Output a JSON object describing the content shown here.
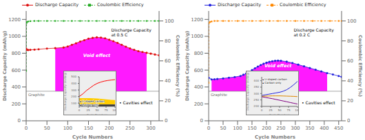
{
  "chart_data": [
    {
      "type": "line",
      "x_label": "Cycle Numbers",
      "y_label": "Discharge Capacity (mAh/g)",
      "y2_label": "Coulombic Efficiency (%)",
      "xlim": [
        0,
        320
      ],
      "xticks": [
        0,
        50,
        100,
        150,
        200,
        250,
        300
      ],
      "ylim": [
        0,
        1300
      ],
      "yticks": [
        0,
        200,
        400,
        600,
        800,
        1000,
        1200
      ],
      "y2lim": [
        0,
        110
      ],
      "y2ticks": [
        0,
        20,
        40,
        60,
        80,
        100
      ],
      "grid": false,
      "legend": "top",
      "series": [
        {
          "name": "Discharge Capacity",
          "type": "line",
          "color": "#dd1111",
          "marker": "circle",
          "line_style": "solid",
          "x": [
            0,
            2,
            5,
            10,
            20,
            30,
            50,
            70,
            90,
            100,
            110,
            120,
            130,
            140,
            150,
            160,
            170,
            180,
            190,
            200,
            210,
            220,
            230,
            240,
            250,
            260,
            270,
            280,
            290,
            300,
            310,
            320
          ],
          "values": [
            855,
            840,
            838,
            840,
            843,
            847,
            855,
            860,
            868,
            880,
            900,
            918,
            938,
            955,
            972,
            982,
            988,
            985,
            977,
            960,
            942,
            922,
            900,
            878,
            857,
            840,
            825,
            815,
            805,
            795,
            785,
            775
          ]
        },
        {
          "name": "Coulombic Efficiency",
          "type": "line",
          "color": "#22aa22",
          "marker": "square",
          "line_style": "dashed",
          "axis": "y2",
          "x": [
            0,
            1,
            2,
            5,
            10,
            20,
            30,
            50,
            70,
            90,
            110,
            130,
            150,
            170,
            190,
            210,
            230,
            250,
            270,
            290,
            310,
            320
          ],
          "values": [
            50,
            98,
            99,
            99.5,
            99.8,
            100,
            100,
            100,
            100,
            100,
            100,
            100,
            100,
            100,
            100,
            100,
            100,
            100,
            100,
            100,
            100,
            100
          ]
        }
      ],
      "reference_line": {
        "y": 350,
        "label": "Graphite",
        "color": "gray"
      },
      "fill": {
        "x_start": 70,
        "x_end": 290,
        "color": "#ff00ff",
        "label": "Void effect"
      },
      "annotations": [
        "• Cavities effect",
        "Discharge Capacity\nat 0.5 C"
      ],
      "inset": {
        "type": "line",
        "x_label": "Cycle Numbers",
        "y_label": "Discharge Capacity (mAh/g)",
        "x": [
          0,
          10,
          20,
          30,
          40,
          50,
          60,
          70,
          80,
          90,
          100
        ],
        "xlim": [
          0,
          100
        ],
        "xticks": [
          0,
          25,
          50,
          75,
          100
        ],
        "ylim": [
          50,
          500
        ],
        "yticks": [
          100,
          200,
          300,
          400,
          500
        ],
        "series": [
          {
            "type": "area_range",
            "color": "#ffcc00",
            "low": [
              80,
              80,
              80,
              80,
              80,
              80,
              80,
              80,
              80,
              80,
              80
            ],
            "high": [
              175,
              175,
              175,
              175,
              173,
              170,
              165,
              160,
              155,
              150,
              148
            ]
          },
          {
            "type": "area_range",
            "color": "#333333",
            "low": [
              50,
              50,
              50,
              50,
              50,
              50,
              50,
              50,
              50,
              50,
              50
            ],
            "high": [
              80,
              80,
              80,
              80,
              80,
              80,
              80,
              80,
              80,
              80,
              80
            ]
          },
          {
            "type": "line",
            "color": "red",
            "values": [
              200,
              240,
              290,
              330,
              370,
              400,
              420,
              435,
              445,
              452,
              458
            ]
          }
        ],
        "annotations": [
          "▴ Li-doped carbon",
          "▴ Carbon only"
        ]
      }
    },
    {
      "type": "line",
      "x_label": "Cycle Numbers",
      "y_label": "Discharge Capacity (mAh/g)",
      "y2_label": "Coulombic Efficiency (%)",
      "xlim": [
        0,
        460
      ],
      "xticks": [
        0,
        50,
        100,
        150,
        200,
        250,
        300,
        350,
        400,
        450
      ],
      "ylim": [
        0,
        1300
      ],
      "yticks": [
        0,
        200,
        400,
        600,
        800,
        1000,
        1200
      ],
      "y2lim": [
        0,
        110
      ],
      "y2ticks": [
        0,
        20,
        40,
        60,
        80,
        100
      ],
      "grid": false,
      "legend": "top",
      "series": [
        {
          "name": "Discharge Capacity",
          "type": "line",
          "color": "#2222dd",
          "marker": "circle",
          "line_style": "solid",
          "x": [
            0,
            10,
            20,
            30,
            50,
            70,
            90,
            110,
            120,
            130,
            140,
            150,
            160,
            170,
            180,
            190,
            200,
            210,
            220,
            230,
            240,
            250,
            270,
            290,
            310,
            330,
            350,
            370,
            390,
            410,
            430,
            450,
            460
          ],
          "values": [
            510,
            490,
            492,
            495,
            502,
            510,
            518,
            530,
            545,
            560,
            580,
            600,
            622,
            642,
            660,
            675,
            688,
            698,
            705,
            710,
            712,
            710,
            700,
            685,
            665,
            645,
            625,
            605,
            585,
            565,
            548,
            530,
            520
          ]
        },
        {
          "name": "Coulombic Efficiency",
          "type": "line",
          "color": "#ff8800",
          "marker": "square",
          "line_style": "dashed",
          "axis": "y2",
          "x": [
            0,
            1,
            5,
            10,
            20,
            30,
            50,
            70,
            100,
            120,
            150,
            180,
            210,
            240,
            270,
            300,
            330,
            360,
            390,
            420,
            450,
            460
          ],
          "values": [
            38,
            98,
            99,
            99.5,
            100,
            100,
            100,
            100,
            100,
            100,
            100,
            100,
            100,
            100,
            100,
            100,
            100,
            100,
            100,
            100,
            100,
            100
          ]
        }
      ],
      "reference_line": {
        "y": 350,
        "label": "Graphite",
        "color": "gray"
      },
      "fill": {
        "x_start": 10,
        "x_end": 420,
        "color": "#ff00ff",
        "label": "Void effect"
      },
      "annotations": [
        "• Cavities effect",
        "Discharge Capacity\nat 0.2 C"
      ],
      "inset": {
        "type": "line",
        "x_label": "Cycle Numbers",
        "y_label": "Discharge Capacity (mAh/g)",
        "x": [
          0,
          10,
          20,
          30,
          40,
          50,
          60,
          70,
          80,
          90,
          100
        ],
        "xlim": [
          0,
          100
        ],
        "xticks": [
          0,
          25,
          50,
          75,
          100
        ],
        "ylim": [
          200,
          430
        ],
        "yticks": [
          200,
          250,
          300,
          350,
          400
        ],
        "series": [
          {
            "type": "line",
            "color": "#2222dd",
            "values": [
              285,
              290,
              295,
              300,
              305,
              310,
              318,
              330,
              348,
              370,
              395
            ]
          },
          {
            "type": "line",
            "color": "#dd8800",
            "values": [
              278,
              280,
              281,
              282,
              282,
              282,
              281,
              280,
              279,
              278,
              276
            ]
          },
          {
            "type": "line",
            "color": "purple",
            "values": [
              275,
              270,
              265,
              260,
              254,
              248,
              242,
              236,
              230,
              224,
              218
            ]
          }
        ],
        "annotations": [
          "▴ Li-doped carbon",
          "▴ Carbon only"
        ]
      }
    }
  ]
}
